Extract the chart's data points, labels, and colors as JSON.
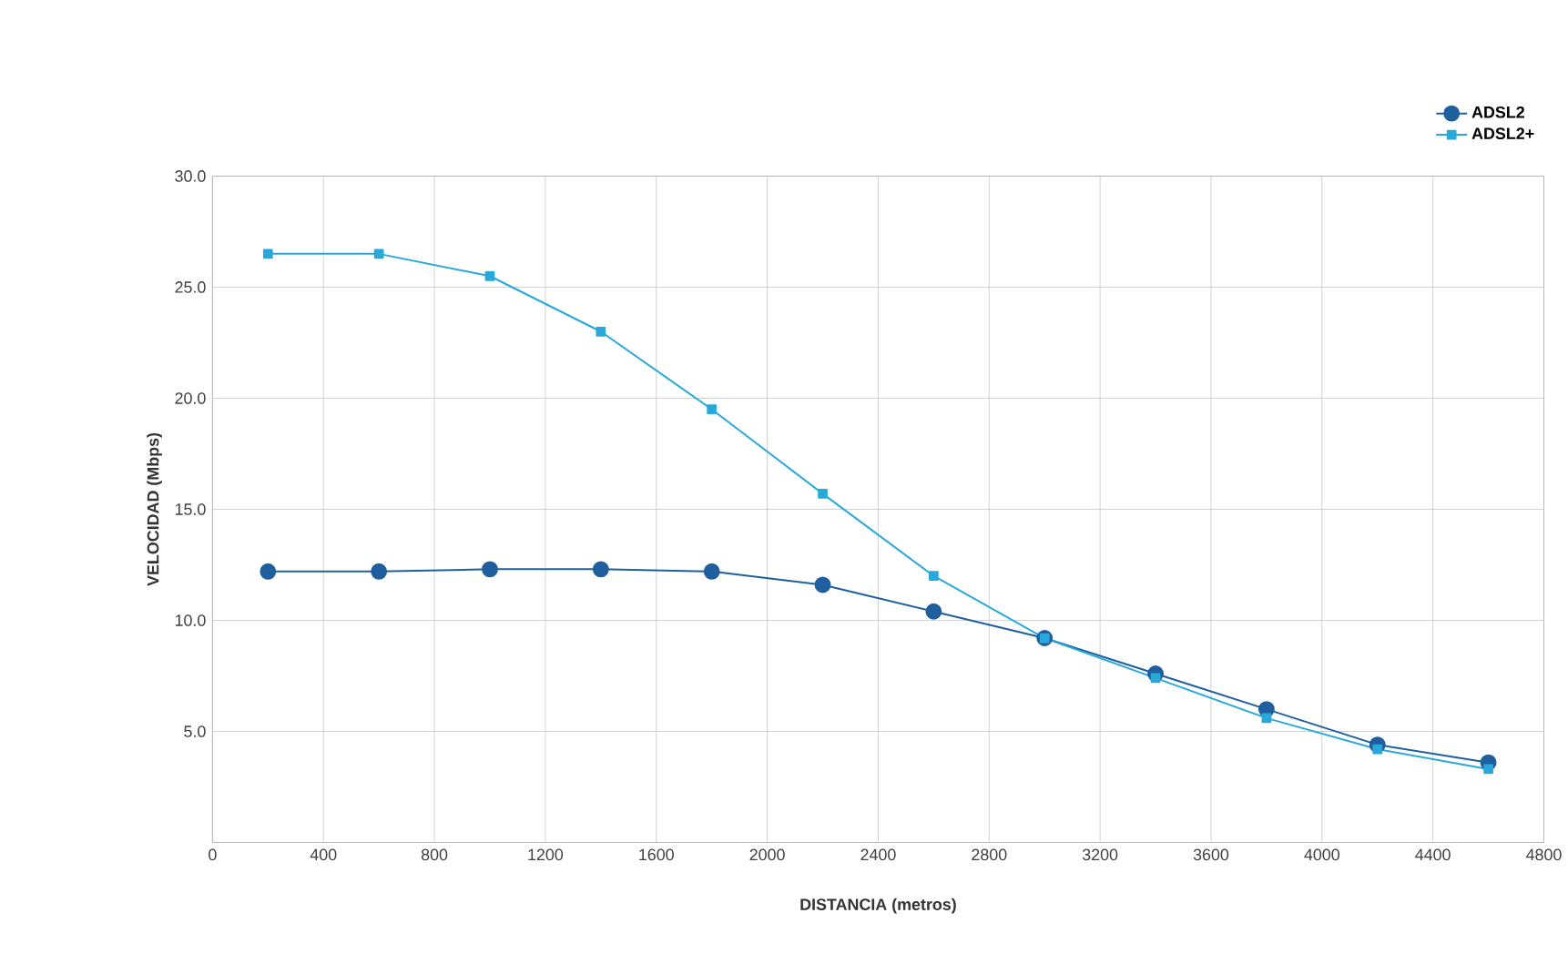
{
  "chart_data": {
    "type": "line",
    "xlabel": "DISTANCIA (metros)",
    "ylabel": "VELOCIDAD (Mbps)",
    "x": [
      200,
      600,
      1000,
      1400,
      1800,
      2200,
      2600,
      3000,
      3400,
      3800,
      4200,
      4600
    ],
    "series": [
      {
        "name": "ADSL2",
        "color": "#1f5f9e",
        "marker": "circle",
        "values": [
          12.2,
          12.2,
          12.3,
          12.3,
          12.2,
          11.6,
          10.4,
          9.2,
          7.6,
          6.0,
          4.4,
          3.6
        ]
      },
      {
        "name": "ADSL2+",
        "color": "#29a9d9",
        "marker": "square",
        "values": [
          26.5,
          26.5,
          25.5,
          23.0,
          19.5,
          15.7,
          12.0,
          9.2,
          7.4,
          5.6,
          4.2,
          3.3
        ]
      }
    ],
    "xlim": [
      0,
      4800
    ],
    "xticks": [
      0,
      400,
      800,
      1200,
      1600,
      2000,
      2400,
      2800,
      3200,
      3600,
      4000,
      4400,
      4800
    ],
    "ylim": [
      0,
      30
    ],
    "yticks": [
      {
        "value": 0,
        "label": null
      },
      {
        "value": 5,
        "label": "5.0"
      },
      {
        "value": 10,
        "label": "10.0"
      },
      {
        "value": 15,
        "label": "15.0"
      },
      {
        "value": 20,
        "label": "20.0"
      },
      {
        "value": 25,
        "label": "25.0"
      },
      {
        "value": 30,
        "label": "30.0"
      }
    ],
    "grid": true,
    "legend": "top right",
    "line_style": "solid"
  }
}
